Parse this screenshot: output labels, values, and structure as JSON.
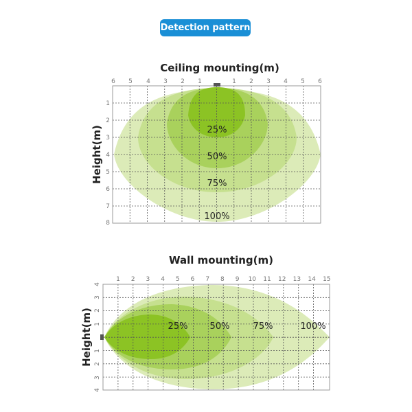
{
  "header": {
    "badge_label": "Detection pattern"
  },
  "colors": {
    "badge": "#1a8fd6",
    "zone_100": "#dcebb8",
    "zone_75": "#c6e08f",
    "zone_50": "#a9d15c",
    "zone_25": "#8cc324"
  },
  "ceiling": {
    "title": "Ceiling mounting(m)",
    "ylabel": "Height(m)",
    "x_ticks": [
      "6",
      "5",
      "4",
      "3",
      "2",
      "1",
      "1",
      "2",
      "3",
      "4",
      "5",
      "6"
    ],
    "y_ticks": [
      "1",
      "2",
      "3",
      "4",
      "5",
      "6",
      "7",
      "8"
    ],
    "zones": [
      "25%",
      "50%",
      "75%",
      "100%"
    ]
  },
  "wall": {
    "title": "Wall mounting(m)",
    "ylabel": "Height(m)",
    "x_ticks": [
      "1",
      "2",
      "3",
      "4",
      "5",
      "6",
      "7",
      "8",
      "9",
      "10",
      "11",
      "12",
      "13",
      "14",
      "15"
    ],
    "y_ticks": [
      "4",
      "3",
      "2",
      "1",
      "1",
      "2",
      "3",
      "4"
    ],
    "zones": [
      "25%",
      "50%",
      "75%",
      "100%"
    ]
  }
}
